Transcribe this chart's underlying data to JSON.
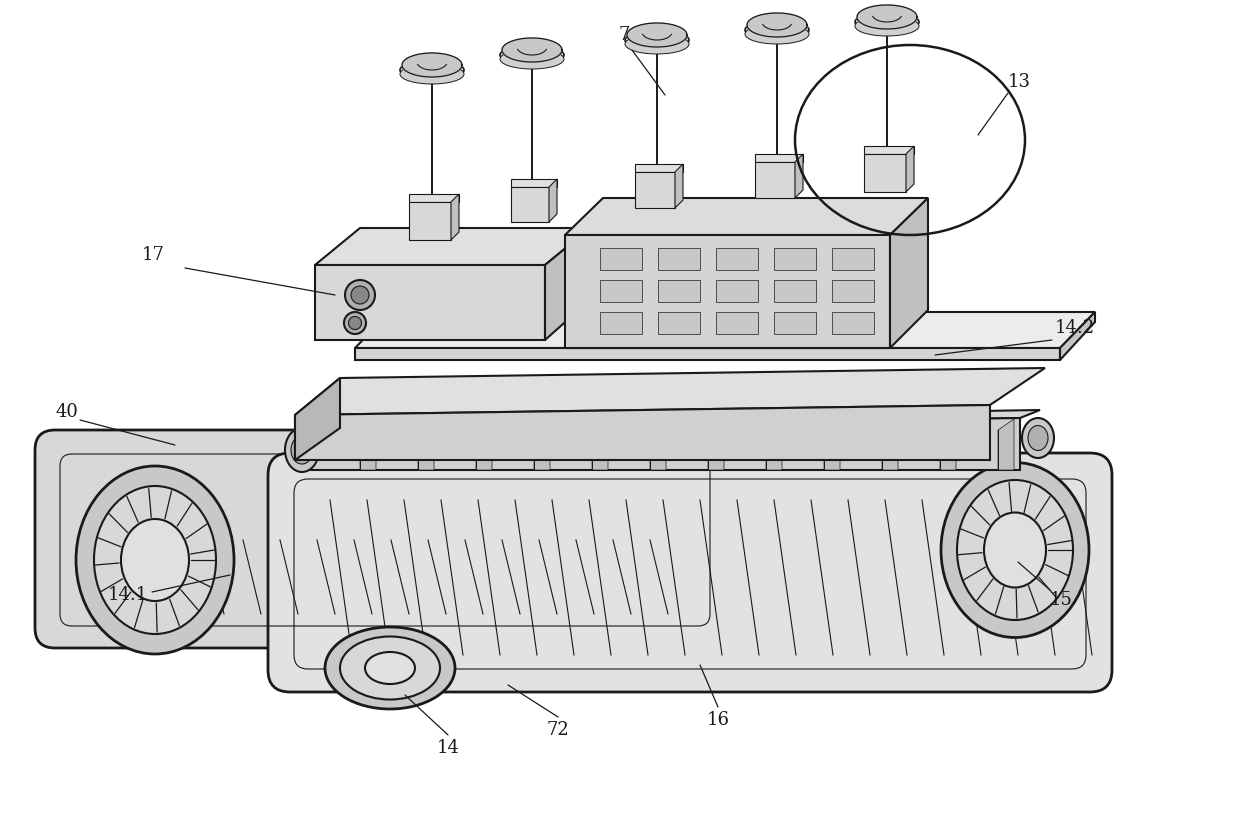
{
  "background_color": "#ffffff",
  "line_color": "#1a1a1a",
  "fill_light": "#e8e8e8",
  "fill_mid": "#c8c8c8",
  "fill_dark": "#a0a0a0",
  "figsize": [
    12.4,
    8.4
  ],
  "dpi": 100
}
